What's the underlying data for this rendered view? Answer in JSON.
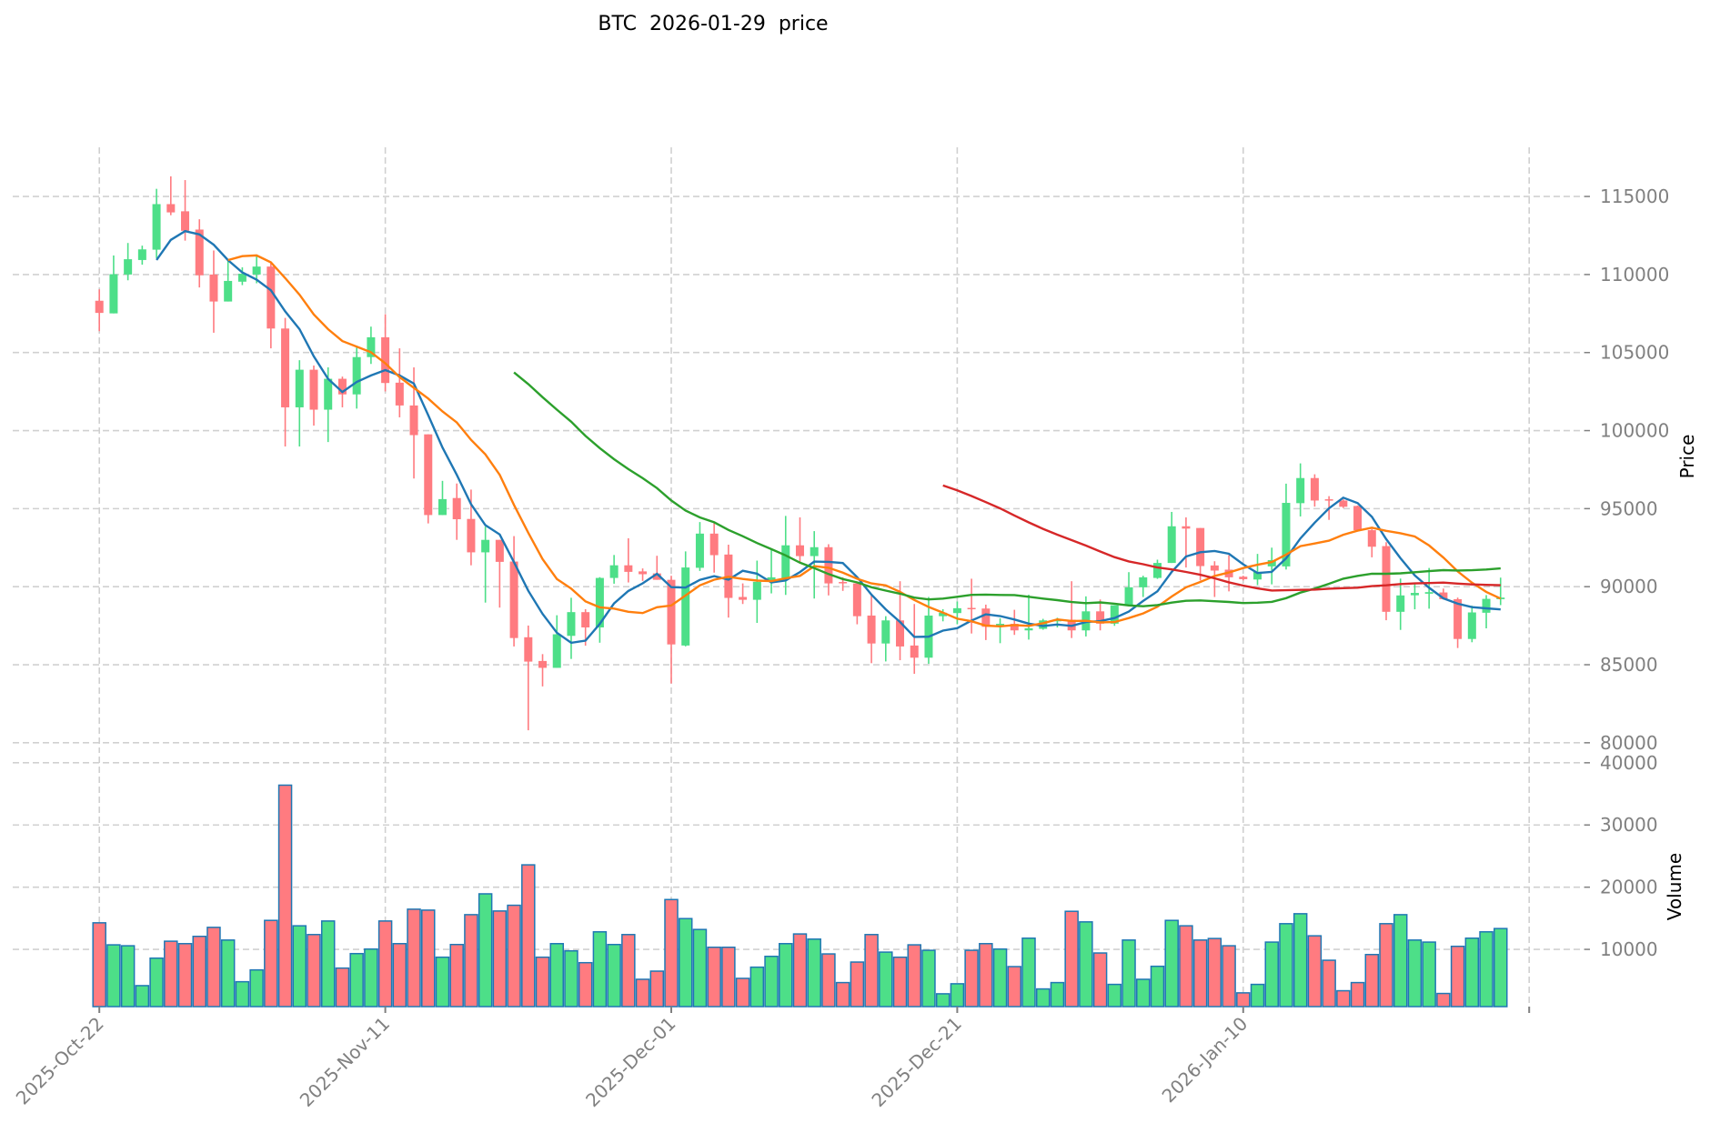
{
  "chart_data": {
    "type": "candlestick",
    "title": "BTC  2026-01-29  price",
    "ylabel": "Price",
    "volume_ylabel": "Volume",
    "ylim": [
      79350,
      118150
    ],
    "volume_ylim": [
      800,
      41000
    ],
    "yticks": [
      80000,
      85000,
      90000,
      95000,
      100000,
      105000,
      110000,
      115000
    ],
    "volume_yticks": [
      10000,
      20000,
      30000,
      40000
    ],
    "xtick_indices": [
      0,
      20,
      40,
      60,
      80,
      100
    ],
    "xtick_labels": [
      "2025-Oct-22",
      "2025-Nov-11",
      "2025-Dec-01",
      "2025-Dec-21",
      "2026-Jan-10"
    ],
    "grid": true,
    "colors": {
      "up": "#4ddf88",
      "down": "#ff7b80",
      "volume_edge": "#1f77b4"
    },
    "moving_averages": [
      {
        "period": 5,
        "color": "#1f77b4"
      },
      {
        "period": 10,
        "color": "#ff7f0e"
      },
      {
        "period": 30,
        "color": "#2ca02c"
      },
      {
        "period": 60,
        "color": "#d62728"
      }
    ],
    "dates": [
      "2025-10-22",
      "2025-10-23",
      "2025-10-24",
      "2025-10-25",
      "2025-10-26",
      "2025-10-27",
      "2025-10-28",
      "2025-10-29",
      "2025-10-30",
      "2025-10-31",
      "2025-11-01",
      "2025-11-02",
      "2025-11-03",
      "2025-11-04",
      "2025-11-05",
      "2025-11-06",
      "2025-11-07",
      "2025-11-08",
      "2025-11-09",
      "2025-11-10",
      "2025-11-11",
      "2025-11-12",
      "2025-11-13",
      "2025-11-14",
      "2025-11-15",
      "2025-11-16",
      "2025-11-17",
      "2025-11-18",
      "2025-11-19",
      "2025-11-20",
      "2025-11-21",
      "2025-11-22",
      "2025-11-23",
      "2025-11-24",
      "2025-11-25",
      "2025-11-26",
      "2025-11-27",
      "2025-11-28",
      "2025-11-29",
      "2025-11-30",
      "2025-12-01",
      "2025-12-02",
      "2025-12-03",
      "2025-12-04",
      "2025-12-05",
      "2025-12-06",
      "2025-12-07",
      "2025-12-08",
      "2025-12-09",
      "2025-12-10",
      "2025-12-11",
      "2025-12-12",
      "2025-12-13",
      "2025-12-14",
      "2025-12-15",
      "2025-12-16",
      "2025-12-17",
      "2025-12-18",
      "2025-12-19",
      "2025-12-20",
      "2025-12-21",
      "2025-12-22",
      "2025-12-23",
      "2025-12-24",
      "2025-12-25",
      "2025-12-26",
      "2025-12-27",
      "2025-12-28",
      "2025-12-29",
      "2025-12-30",
      "2025-12-31",
      "2026-01-01",
      "2026-01-02",
      "2026-01-03",
      "2026-01-04",
      "2026-01-05",
      "2026-01-06",
      "2026-01-07",
      "2026-01-08",
      "2026-01-09",
      "2026-01-10",
      "2026-01-11",
      "2026-01-12",
      "2026-01-13",
      "2026-01-14",
      "2026-01-15",
      "2026-01-16",
      "2026-01-17",
      "2026-01-18",
      "2026-01-19",
      "2026-01-20",
      "2026-01-21",
      "2026-01-22",
      "2026-01-23",
      "2026-01-24",
      "2026-01-25",
      "2026-01-26",
      "2026-01-27",
      "2026-01-28"
    ],
    "ohlc": [
      [
        108320,
        109050,
        106370,
        107540
      ],
      [
        107510,
        111220,
        107510,
        110020
      ],
      [
        110000,
        112020,
        109630,
        110980
      ],
      [
        110930,
        111850,
        110630,
        111610
      ],
      [
        111590,
        115490,
        111050,
        114510
      ],
      [
        114510,
        116290,
        113800,
        113980
      ],
      [
        114050,
        116050,
        112170,
        112800
      ],
      [
        112880,
        113540,
        109170,
        109950
      ],
      [
        110000,
        111540,
        106270,
        108270
      ],
      [
        108270,
        110930,
        108270,
        109590
      ],
      [
        109540,
        110460,
        109320,
        110050
      ],
      [
        110000,
        111170,
        109440,
        110510
      ],
      [
        110510,
        110730,
        105270,
        106540
      ],
      [
        106540,
        107220,
        98980,
        101490
      ],
      [
        101490,
        104510,
        98980,
        103900
      ],
      [
        103900,
        104170,
        100320,
        101340
      ],
      [
        101340,
        104050,
        99270,
        103320
      ],
      [
        103320,
        103460,
        101490,
        102320
      ],
      [
        102320,
        105320,
        101410,
        104710
      ],
      [
        104710,
        106660,
        104270,
        105980
      ],
      [
        105980,
        107460,
        102510,
        103050
      ],
      [
        103070,
        105270,
        100850,
        101610
      ],
      [
        101610,
        104050,
        96930,
        99710
      ],
      [
        99760,
        99760,
        94050,
        94590
      ],
      [
        94590,
        96780,
        94590,
        95610
      ],
      [
        95680,
        96610,
        93000,
        94320
      ],
      [
        94340,
        96220,
        91370,
        92200
      ],
      [
        92200,
        93850,
        88980,
        93000
      ],
      [
        93000,
        93000,
        88660,
        91590
      ],
      [
        91610,
        93240,
        86170,
        86710
      ],
      [
        86760,
        87510,
        80800,
        85200
      ],
      [
        85240,
        85680,
        83610,
        84800
      ],
      [
        84800,
        88170,
        84800,
        86950
      ],
      [
        86850,
        89290,
        85370,
        88370
      ],
      [
        88370,
        88560,
        86220,
        87390
      ],
      [
        87390,
        90610,
        86410,
        90560
      ],
      [
        90560,
        92030,
        90190,
        91370
      ],
      [
        91370,
        93100,
        90270,
        90950
      ],
      [
        90980,
        91170,
        90370,
        90800
      ],
      [
        90850,
        91980,
        90440,
        90440
      ],
      [
        90440,
        90700,
        83800,
        86300
      ],
      [
        86230,
        92260,
        86170,
        91230
      ],
      [
        91210,
        94140,
        91010,
        93400
      ],
      [
        93400,
        94100,
        90900,
        92020
      ],
      [
        92060,
        92690,
        88020,
        89280
      ],
      [
        89340,
        90210,
        88890,
        89160
      ],
      [
        89160,
        91670,
        87680,
        90310
      ],
      [
        90310,
        92450,
        89570,
        90600
      ],
      [
        90500,
        94530,
        89470,
        92650
      ],
      [
        92650,
        94440,
        91480,
        91960
      ],
      [
        91960,
        93560,
        89240,
        92530
      ],
      [
        92530,
        92720,
        89440,
        90210
      ],
      [
        90300,
        90600,
        89730,
        90230
      ],
      [
        90210,
        90300,
        87590,
        88110
      ],
      [
        88150,
        89530,
        85100,
        86360
      ],
      [
        86360,
        88110,
        85210,
        87840
      ],
      [
        87840,
        90350,
        85290,
        86170
      ],
      [
        86230,
        88890,
        84420,
        85450
      ],
      [
        85450,
        89340,
        85060,
        88150
      ],
      [
        88110,
        88560,
        87780,
        88330
      ],
      [
        88310,
        89050,
        87590,
        88620
      ],
      [
        88640,
        90510,
        87000,
        88600
      ],
      [
        88600,
        88850,
        86580,
        87430
      ],
      [
        87430,
        87980,
        86380,
        87620
      ],
      [
        87620,
        88520,
        86910,
        87200
      ],
      [
        87200,
        89490,
        86610,
        87330
      ],
      [
        87300,
        87940,
        87240,
        87840
      ],
      [
        87780,
        88010,
        87390,
        87880
      ],
      [
        87880,
        90350,
        86710,
        87200
      ],
      [
        87200,
        89380,
        86810,
        88420
      ],
      [
        88420,
        89180,
        87200,
        87630
      ],
      [
        87630,
        88810,
        87490,
        88810
      ],
      [
        88810,
        90930,
        88750,
        89960
      ],
      [
        89960,
        90700,
        89340,
        90600
      ],
      [
        90560,
        91730,
        90500,
        91520
      ],
      [
        91520,
        94790,
        91520,
        93870
      ],
      [
        93870,
        94440,
        91230,
        93720
      ],
      [
        93760,
        93760,
        90400,
        91320
      ],
      [
        91360,
        91630,
        89340,
        91030
      ],
      [
        91090,
        92020,
        89700,
        90600
      ],
      [
        90640,
        90700,
        90400,
        90480
      ],
      [
        90460,
        92100,
        90100,
        90950
      ],
      [
        91300,
        92500,
        90150,
        91700
      ],
      [
        91300,
        96600,
        91100,
        95370
      ],
      [
        95350,
        97900,
        94500,
        96960
      ],
      [
        96960,
        97200,
        95130,
        95520
      ],
      [
        95600,
        95800,
        94280,
        95550
      ],
      [
        95520,
        95600,
        95040,
        95120
      ],
      [
        95170,
        95200,
        93550,
        93620
      ],
      [
        93620,
        93700,
        91880,
        92560
      ],
      [
        92600,
        92850,
        87850,
        88390
      ],
      [
        88390,
        90520,
        87230,
        89440
      ],
      [
        89450,
        90170,
        88550,
        89600
      ],
      [
        89550,
        91200,
        88590,
        89650
      ],
      [
        89630,
        89880,
        89170,
        89200
      ],
      [
        89200,
        89300,
        86070,
        86650
      ],
      [
        86650,
        88780,
        86440,
        88350
      ],
      [
        88330,
        89460,
        87330,
        89220
      ],
      [
        89200,
        90580,
        88820,
        89300
      ]
    ],
    "volume": [
      14270,
      10730,
      10580,
      4170,
      8590,
      11310,
      10920,
      12090,
      13540,
      11500,
      4800,
      6700,
      14660,
      36400,
      13790,
      12380,
      14560,
      6990,
      9320,
      10050,
      14560,
      10920,
      16460,
      16310,
      8740,
      10780,
      15580,
      18930,
      16170,
      17090,
      23590,
      8740,
      10920,
      9760,
      7860,
      12820,
      10780,
      12380,
      5190,
      6500,
      18010,
      14950,
      13200,
      10340,
      10340,
      5340,
      7140,
      8880,
      10920,
      12480,
      11650,
      9270,
      4660,
      7960,
      12380,
      9560,
      8740,
      10730,
      9850,
      2860,
      4470,
      9850,
      10920,
      10050,
      7230,
      11800,
      3640,
      4660,
      16120,
      14420,
      9420,
      4370,
      11500,
      5190,
      7280,
      14660,
      13790,
      11500,
      11750,
      10580,
      3010,
      4370,
      11170,
      14130,
      15730,
      12180,
      8250,
      3350,
      4660,
      9170,
      14130,
      15580,
      11500,
      11170,
      2910,
      10490,
      11800,
      12820,
      13350
    ]
  }
}
